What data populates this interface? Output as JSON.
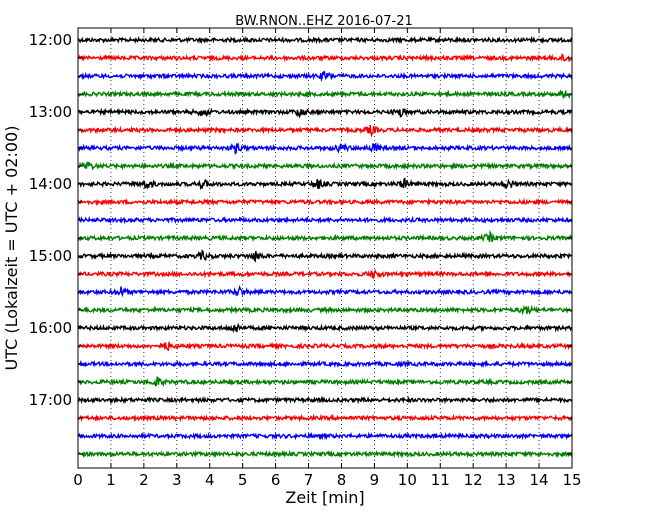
{
  "chart_data": {
    "type": "line",
    "title": "BW.RNON..EHZ 2016-07-21",
    "xlabel": "Zeit  [min]",
    "ylabel": "UTC (Lokalzeit = UTC + 02:00)",
    "xlim": [
      0,
      15
    ],
    "xticks": [
      "0",
      "1",
      "2",
      "3",
      "4",
      "5",
      "6",
      "7",
      "8",
      "9",
      "10",
      "11",
      "12",
      "13",
      "14",
      "15"
    ],
    "y_hour_labels": [
      "12:00",
      "13:00",
      "14:00",
      "15:00",
      "16:00",
      "17:00"
    ],
    "traces_per_hour": 4,
    "trace_start": "12:00",
    "trace_minutes": 15,
    "trace_colors": [
      "#000000",
      "#ff0000",
      "#0000ff",
      "#008000"
    ],
    "grid": "vertical dotted",
    "series": [
      {
        "start": "12:00",
        "events": []
      },
      {
        "start": "12:15",
        "events": [
          14.8
        ]
      },
      {
        "start": "12:30",
        "events": [
          7.5
        ]
      },
      {
        "start": "12:45",
        "events": [
          14.8
        ]
      },
      {
        "start": "13:00",
        "events": [
          3.8,
          6.75,
          9.8
        ]
      },
      {
        "start": "13:15",
        "events": [
          8.9
        ]
      },
      {
        "start": "13:30",
        "events": [
          4.8,
          8.0,
          9.0
        ]
      },
      {
        "start": "13:45",
        "events": [
          0.3
        ]
      },
      {
        "start": "14:00",
        "events": [
          2.1,
          3.8,
          7.3,
          9.9,
          13.1
        ]
      },
      {
        "start": "14:15",
        "events": []
      },
      {
        "start": "14:30",
        "events": []
      },
      {
        "start": "14:45",
        "events": [
          12.5
        ]
      },
      {
        "start": "15:00",
        "events": [
          3.8,
          5.4
        ]
      },
      {
        "start": "15:15",
        "events": [
          9.0
        ]
      },
      {
        "start": "15:30",
        "events": [
          1.3,
          4.9
        ]
      },
      {
        "start": "15:45",
        "events": [
          13.6
        ]
      },
      {
        "start": "16:00",
        "events": [
          4.8
        ]
      },
      {
        "start": "16:15",
        "events": [
          2.7
        ]
      },
      {
        "start": "16:30",
        "events": []
      },
      {
        "start": "16:45",
        "events": [
          2.4
        ]
      },
      {
        "start": "17:00",
        "events": []
      },
      {
        "start": "17:15",
        "events": []
      },
      {
        "start": "17:30",
        "events": []
      },
      {
        "start": "17:45",
        "events": []
      }
    ]
  }
}
